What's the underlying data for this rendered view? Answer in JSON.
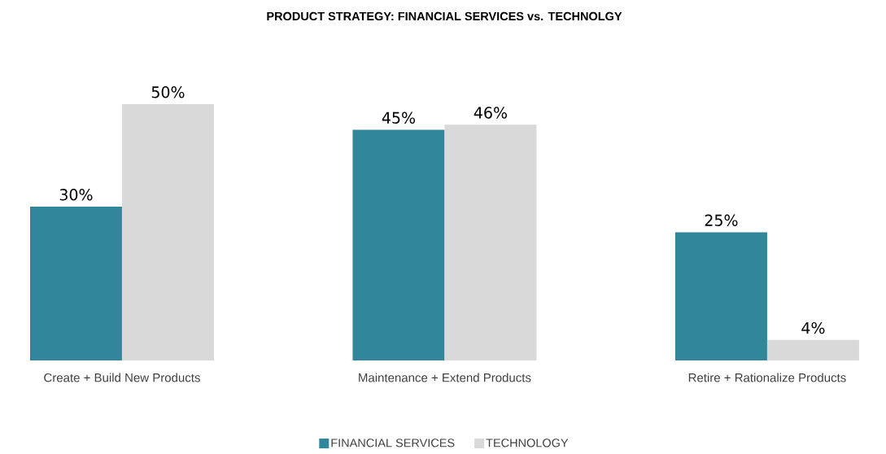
{
  "chart_data": {
    "type": "bar",
    "title": "PRODUCT STRATEGY: FINANCIAL SERVICES vs. TECHNOLGY",
    "categories": [
      "Create + Build New Products",
      "Maintenance + Extend Products",
      "Retire +  Rationalize Products"
    ],
    "series": [
      {
        "name": "FINANCIAL SERVICES",
        "color": "#31869b",
        "values": [
          30,
          45,
          25
        ],
        "value_labels": [
          "30%",
          "45%",
          "25%"
        ]
      },
      {
        "name": "TECHNOLOGY",
        "color": "#d9d9d9",
        "values": [
          50,
          46,
          4
        ],
        "value_labels": [
          "50%",
          "46%",
          "4%"
        ]
      }
    ],
    "legend": "bottom"
  }
}
